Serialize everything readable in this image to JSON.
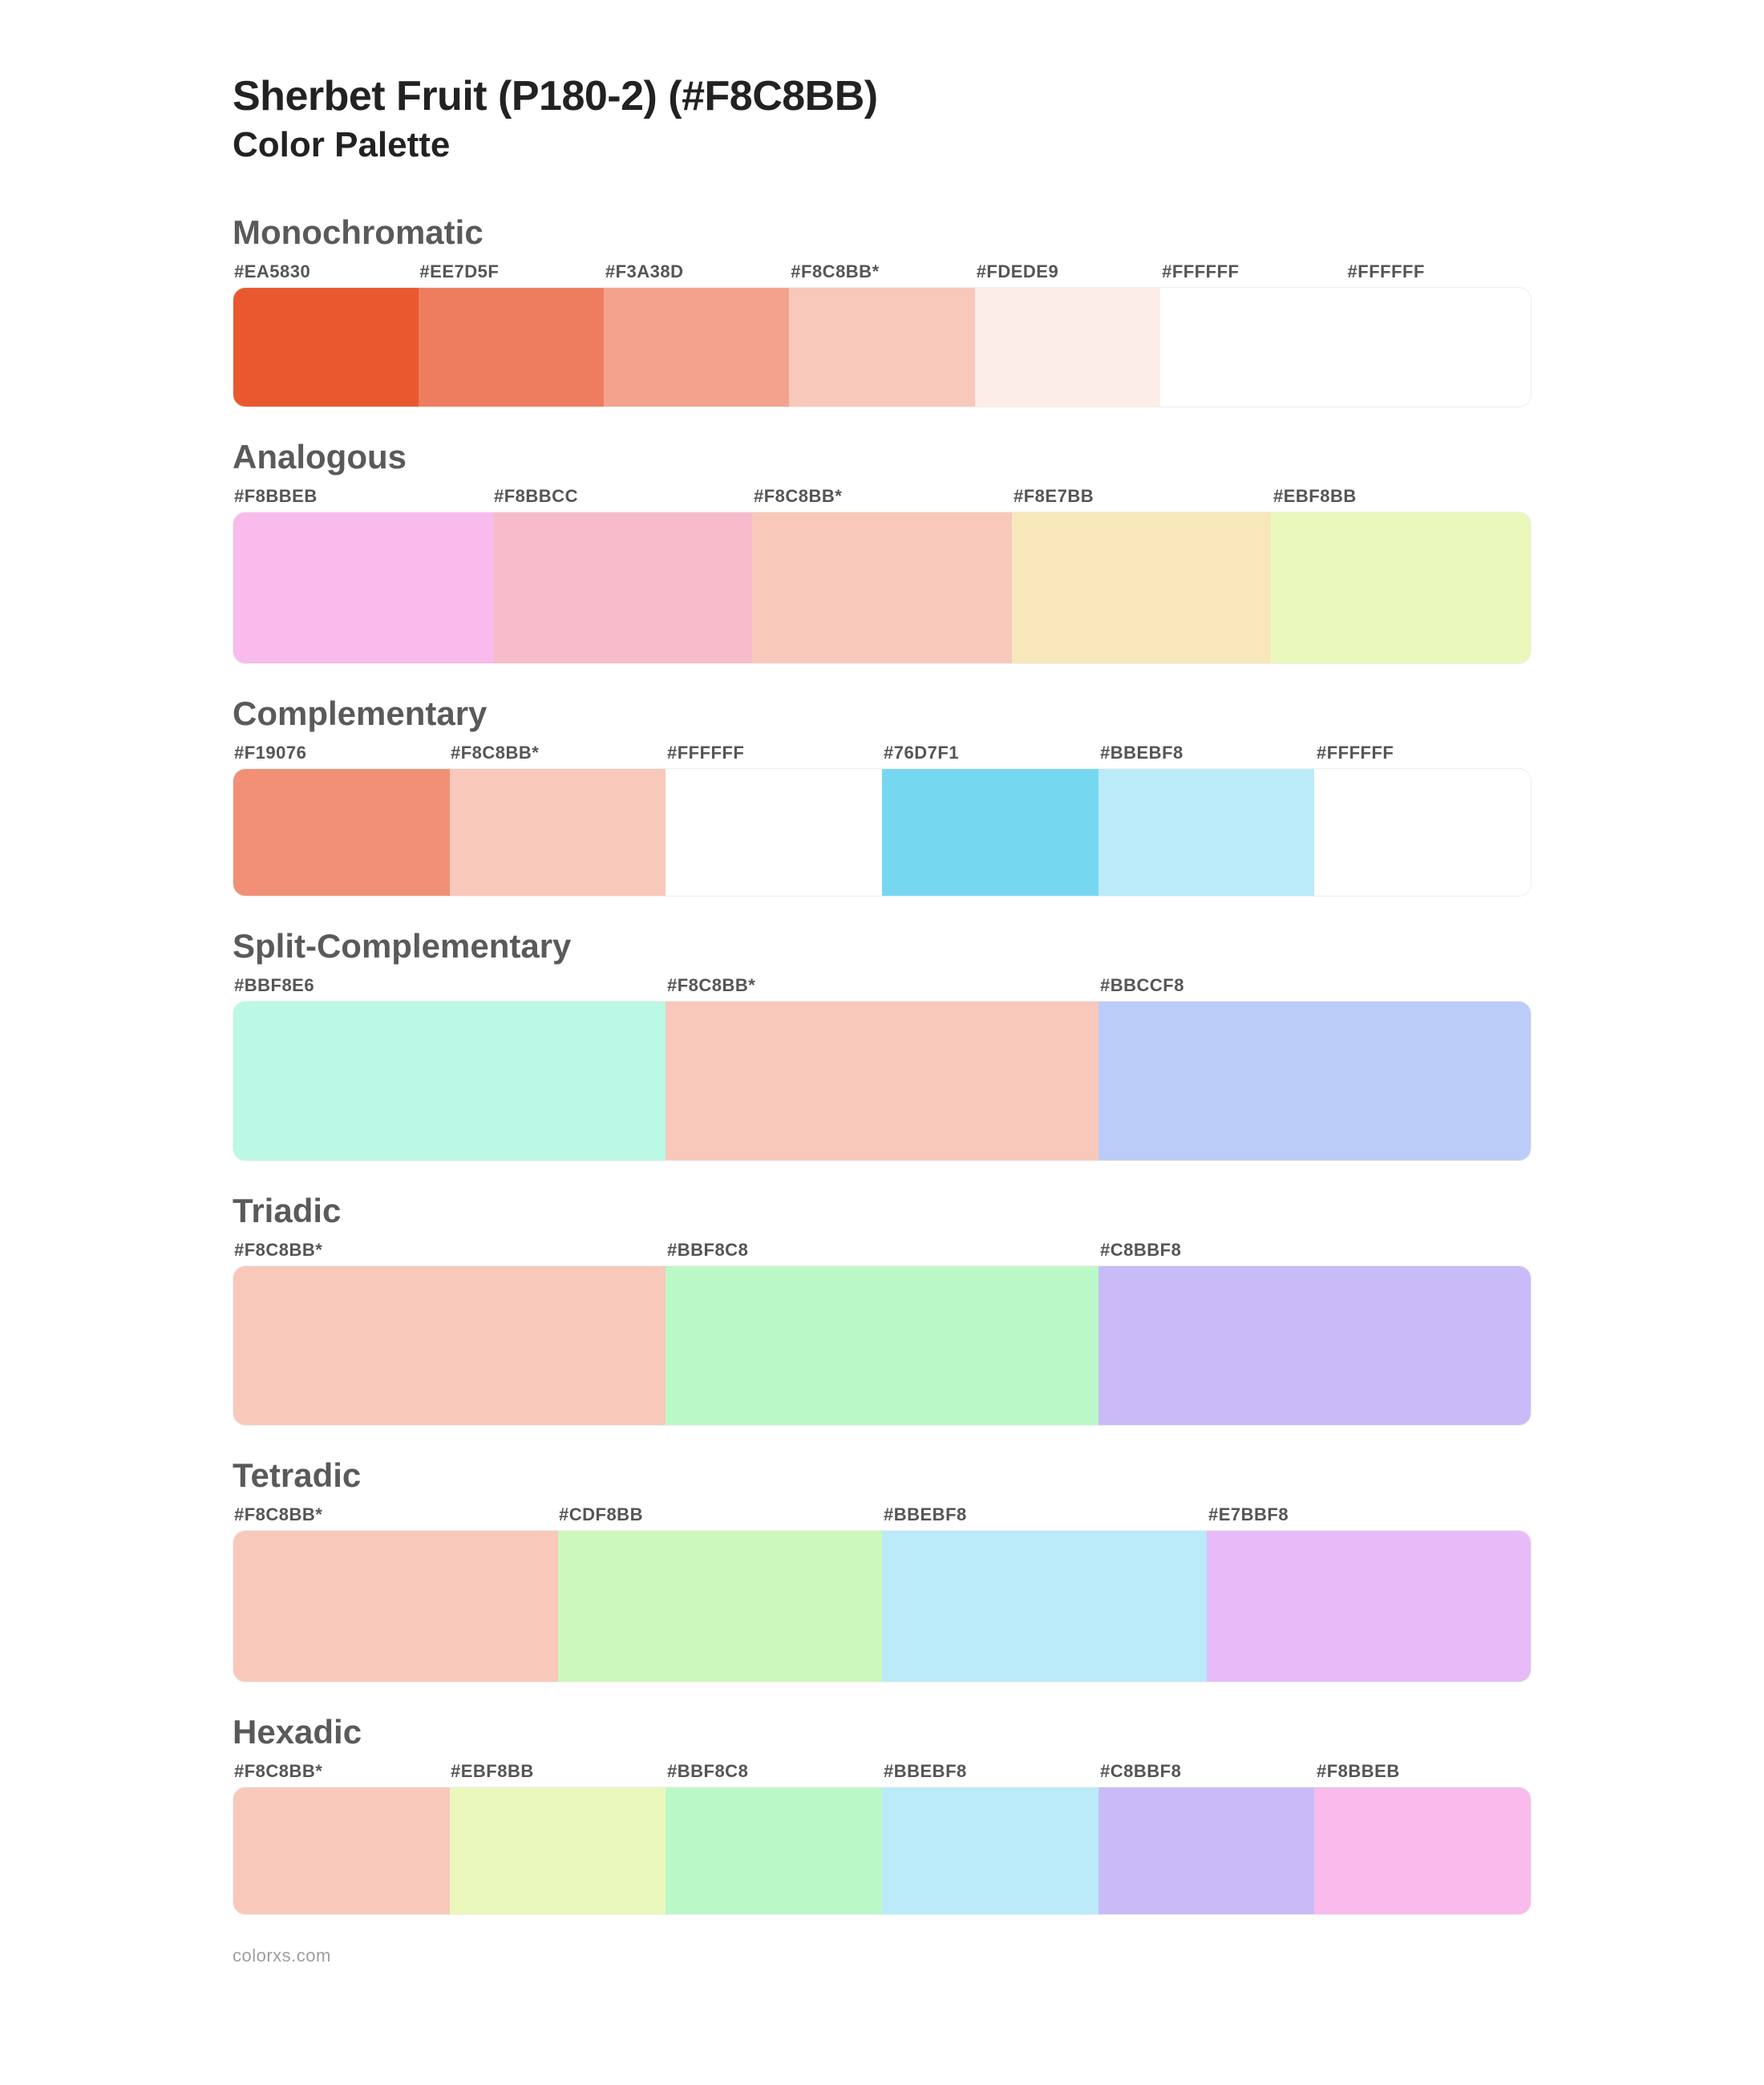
{
  "title": "Sherbet Fruit (P180-2) (#F8C8BB)",
  "subtitle": "Color Palette",
  "footer": "colorxs.com",
  "row_heights": {
    "7": 150,
    "6": 160,
    "5": 190,
    "4": 190,
    "3": 200
  },
  "groups": [
    {
      "name": "Monochromatic",
      "swatches": [
        {
          "label": "#EA5830",
          "color": "#EA5830"
        },
        {
          "label": "#EE7D5F",
          "color": "#EE7D5F"
        },
        {
          "label": "#F3A38D",
          "color": "#F3A38D"
        },
        {
          "label": "#F8C8BB*",
          "color": "#F8C8BB"
        },
        {
          "label": "#FDEDE9",
          "color": "#FDEDE9"
        },
        {
          "label": "#FFFFFF",
          "color": "#FFFFFF"
        },
        {
          "label": "#FFFFFF",
          "color": "#FFFFFF"
        }
      ]
    },
    {
      "name": "Analogous",
      "swatches": [
        {
          "label": "#F8BBEB",
          "color": "#F8BBEB"
        },
        {
          "label": "#F8BBCC",
          "color": "#F8BBCC"
        },
        {
          "label": "#F8C8BB*",
          "color": "#F8C8BB"
        },
        {
          "label": "#F8E7BB",
          "color": "#F8E7BB"
        },
        {
          "label": "#EBF8BB",
          "color": "#EBF8BB"
        }
      ]
    },
    {
      "name": "Complementary",
      "swatches": [
        {
          "label": "#F19076",
          "color": "#F19076"
        },
        {
          "label": "#F8C8BB*",
          "color": "#F8C8BB"
        },
        {
          "label": "#FFFFFF",
          "color": "#FFFFFF"
        },
        {
          "label": "#76D7F1",
          "color": "#76D7F1"
        },
        {
          "label": "#BBEBF8",
          "color": "#BBEBF8"
        },
        {
          "label": "#FFFFFF",
          "color": "#FFFFFF"
        }
      ]
    },
    {
      "name": "Split-Complementary",
      "swatches": [
        {
          "label": "#BBF8E6",
          "color": "#BBF8E6"
        },
        {
          "label": "#F8C8BB*",
          "color": "#F8C8BB"
        },
        {
          "label": "#BBCCF8",
          "color": "#BBCCF8"
        }
      ]
    },
    {
      "name": "Triadic",
      "swatches": [
        {
          "label": "#F8C8BB*",
          "color": "#F8C8BB"
        },
        {
          "label": "#BBF8C8",
          "color": "#BBF8C8"
        },
        {
          "label": "#C8BBF8",
          "color": "#C8BBF8"
        }
      ]
    },
    {
      "name": "Tetradic",
      "swatches": [
        {
          "label": "#F8C8BB*",
          "color": "#F8C8BB"
        },
        {
          "label": "#CDF8BB",
          "color": "#CDF8BB"
        },
        {
          "label": "#BBEBF8",
          "color": "#BBEBF8"
        },
        {
          "label": "#E7BBF8",
          "color": "#E7BBF8"
        }
      ]
    },
    {
      "name": "Hexadic",
      "swatches": [
        {
          "label": "#F8C8BB*",
          "color": "#F8C8BB"
        },
        {
          "label": "#EBF8BB",
          "color": "#EBF8BB"
        },
        {
          "label": "#BBF8C8",
          "color": "#BBF8C8"
        },
        {
          "label": "#BBEBF8",
          "color": "#BBEBF8"
        },
        {
          "label": "#C8BBF8",
          "color": "#C8BBF8"
        },
        {
          "label": "#F8BBEB",
          "color": "#F8BBEB"
        }
      ]
    }
  ]
}
